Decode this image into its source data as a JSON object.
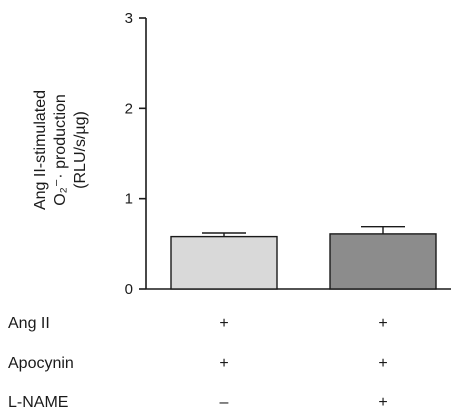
{
  "chart_data": {
    "type": "bar",
    "title": "",
    "xlabel": "",
    "ylabel_lines": [
      "Ang II-stimulated",
      "O₂⁻· production",
      "(RLU/s/µg)"
    ],
    "ylim": [
      0,
      3
    ],
    "yticks": [
      "0",
      "1",
      "2",
      "3"
    ],
    "grid": false,
    "legend": "none",
    "categories": [
      "",
      ""
    ],
    "values": [
      0.58,
      0.61
    ],
    "error_upper": [
      0.04,
      0.08
    ],
    "colors": [
      "#d9d9d9",
      "#8c8c8c"
    ],
    "condition_rows": [
      {
        "label": "Ang II",
        "marks": [
          "+",
          "+"
        ]
      },
      {
        "label": "Apocynin",
        "marks": [
          "+",
          "+"
        ]
      },
      {
        "label": "L-NAME",
        "marks": [
          "–",
          "+"
        ]
      }
    ]
  }
}
